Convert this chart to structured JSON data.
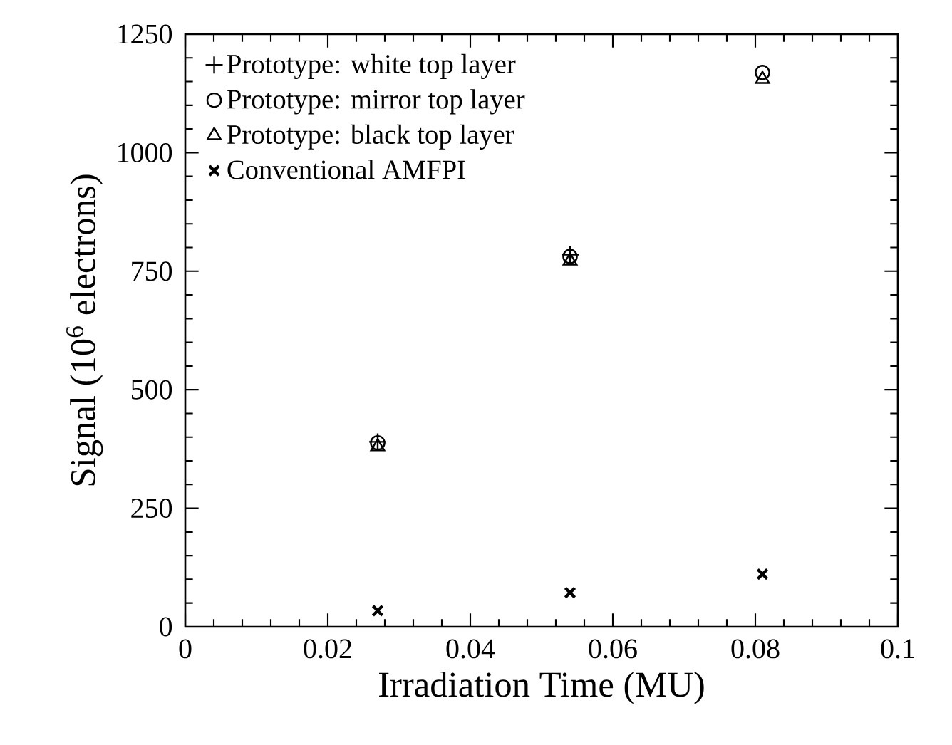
{
  "chart_data": {
    "type": "scatter",
    "xlabel": "Irradiation Time (MU)",
    "ylabel": "Signal (10$^{6}$ electrons)",
    "x": [
      0.027,
      0.054,
      0.081
    ],
    "series": [
      {
        "name": "Prototype: white top layer",
        "color": "#000000",
        "marker": "plus",
        "values": [
          390,
          785,
          null
        ]
      },
      {
        "name": "Prototype: mirror top layer",
        "color": "#000000",
        "marker": "circle",
        "values": [
          388,
          781,
          1169
        ]
      },
      {
        "name": "Prototype: black top layer",
        "color": "#000000",
        "marker": "triangle",
        "values": [
          380,
          772,
          1155
        ]
      },
      {
        "name": "Conventional AMFPI",
        "color": "#000000",
        "marker": "cross",
        "values": [
          34,
          72,
          111
        ]
      }
    ],
    "xlim": [
      0,
      0.1
    ],
    "xticks": [
      0,
      0.02,
      0.04,
      0.06,
      0.08,
      0.1
    ],
    "ylim": [
      0,
      1250
    ],
    "yticks": [
      0,
      250,
      500,
      750,
      1000,
      1250
    ],
    "grid": false,
    "legend": "top left"
  }
}
